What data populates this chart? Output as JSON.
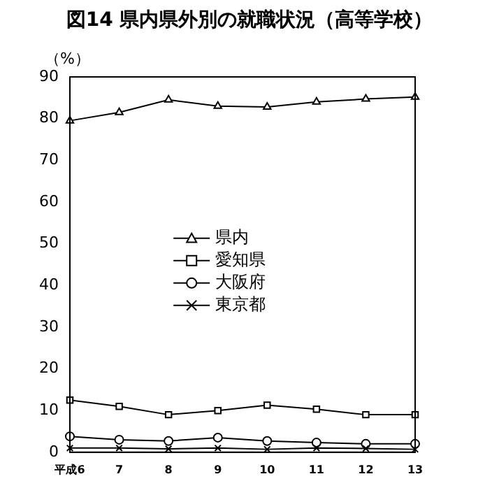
{
  "chart_data": {
    "type": "line",
    "title": "図14 県内県外別の就職状況（高等学校）",
    "ylabel": "（%）",
    "categories": [
      "平成6",
      "7",
      "8",
      "9",
      "10",
      "11",
      "12",
      "13"
    ],
    "series": [
      {
        "name": "県内",
        "color": "#000000",
        "marker": "triangle",
        "values": [
          79.5,
          81.5,
          84.5,
          83,
          82.8,
          84,
          84.7,
          85.2
        ]
      },
      {
        "name": "愛知県",
        "color": "#000000",
        "marker": "square",
        "values": [
          12.5,
          11,
          9,
          10,
          11.3,
          10.3,
          9,
          9
        ]
      },
      {
        "name": "大阪府",
        "color": "#000000",
        "marker": "circle",
        "values": [
          3.8,
          3,
          2.7,
          3.5,
          2.7,
          2.3,
          2,
          2
        ]
      },
      {
        "name": "東京都",
        "color": "#000000",
        "marker": "cross",
        "values": [
          1,
          1,
          0.8,
          1,
          0.7,
          1,
          0.9,
          0.7
        ]
      }
    ],
    "ylim": [
      0,
      90
    ],
    "yticks": [
      0,
      10,
      20,
      30,
      40,
      50,
      60,
      70,
      80,
      90
    ],
    "grid": false,
    "legend": "center",
    "line_style": "solid"
  }
}
